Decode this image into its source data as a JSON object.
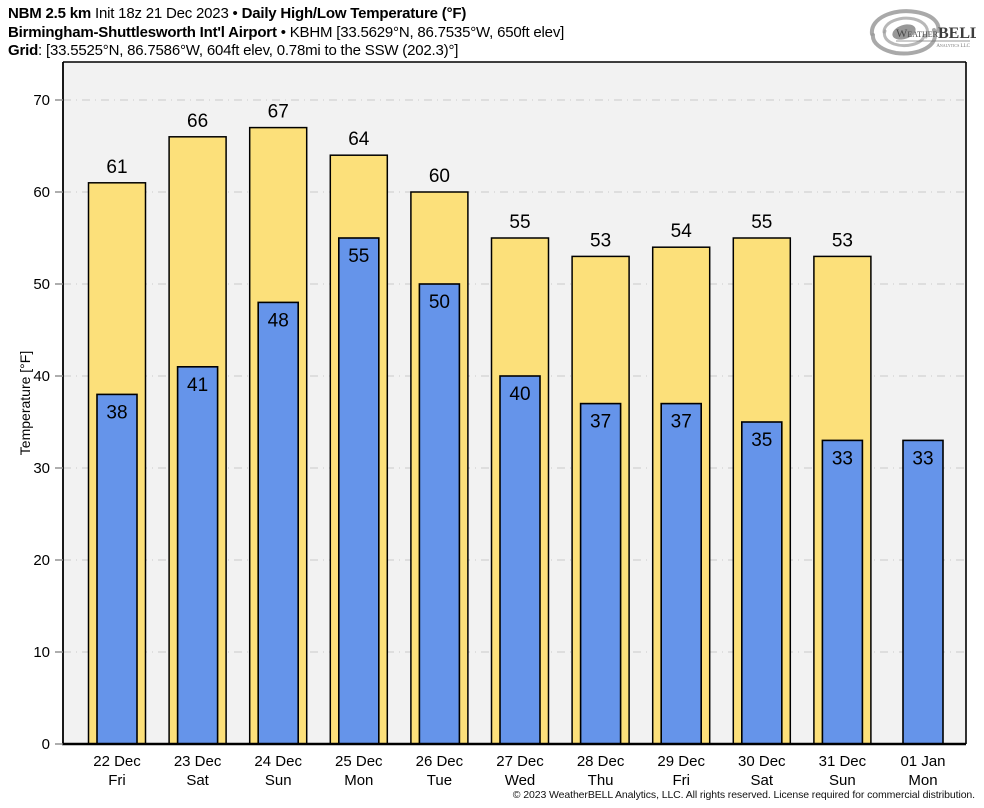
{
  "header": {
    "line1": {
      "model": "NBM 2.5 km",
      "init": " Init 18z 21 Dec 2023 • ",
      "product": "Daily High/Low Temperature (°F)"
    },
    "line2": {
      "station": "Birmingham-Shuttlesworth Int'l Airport",
      "details": " • KBHM [33.5629°N, 86.7535°W, 650ft elev]"
    },
    "line3": {
      "label": "Grid",
      "details": ": [33.5525°N, 86.7586°W, 604ft elev, 0.78mi to the SSW (202.3)°]"
    }
  },
  "logo": {
    "name_main": "Weather",
    "name_accent": "BELL",
    "subtitle": "Analytics LLC"
  },
  "footer": {
    "copyright": "© 2023 WeatherBELL Analytics, LLC. All rights reserved. License required for commercial distribution."
  },
  "chart_data": {
    "type": "bar",
    "title": "Daily High/Low Temperature (°F)",
    "xlabel": "",
    "ylabel": "Temperature [°F]",
    "ylim": [
      0,
      74
    ],
    "yticks": [
      0,
      10,
      20,
      30,
      40,
      50,
      60,
      70
    ],
    "grid": "horizontal-dashdot",
    "legend_position": "none",
    "categories": [
      {
        "date": "22 Dec",
        "day": "Fri"
      },
      {
        "date": "23 Dec",
        "day": "Sat"
      },
      {
        "date": "24 Dec",
        "day": "Sun"
      },
      {
        "date": "25 Dec",
        "day": "Mon"
      },
      {
        "date": "26 Dec",
        "day": "Tue"
      },
      {
        "date": "27 Dec",
        "day": "Wed"
      },
      {
        "date": "28 Dec",
        "day": "Thu"
      },
      {
        "date": "29 Dec",
        "day": "Fri"
      },
      {
        "date": "30 Dec",
        "day": "Sat"
      },
      {
        "date": "31 Dec",
        "day": "Sun"
      },
      {
        "date": "01 Jan",
        "day": "Mon"
      }
    ],
    "series": [
      {
        "name": "High",
        "color": "#FCE07A",
        "values": [
          61,
          66,
          67,
          64,
          60,
          55,
          53,
          54,
          55,
          53,
          null
        ]
      },
      {
        "name": "Low",
        "color": "#6594EA",
        "values": [
          38,
          41,
          48,
          55,
          50,
          40,
          37,
          37,
          35,
          33,
          33
        ]
      }
    ],
    "colors": {
      "plot_background": "#F2F2F2",
      "gridline": "#C9C9C9",
      "axis": "#000000",
      "tick": "#8C8C8C",
      "label_text": "#000000"
    }
  }
}
